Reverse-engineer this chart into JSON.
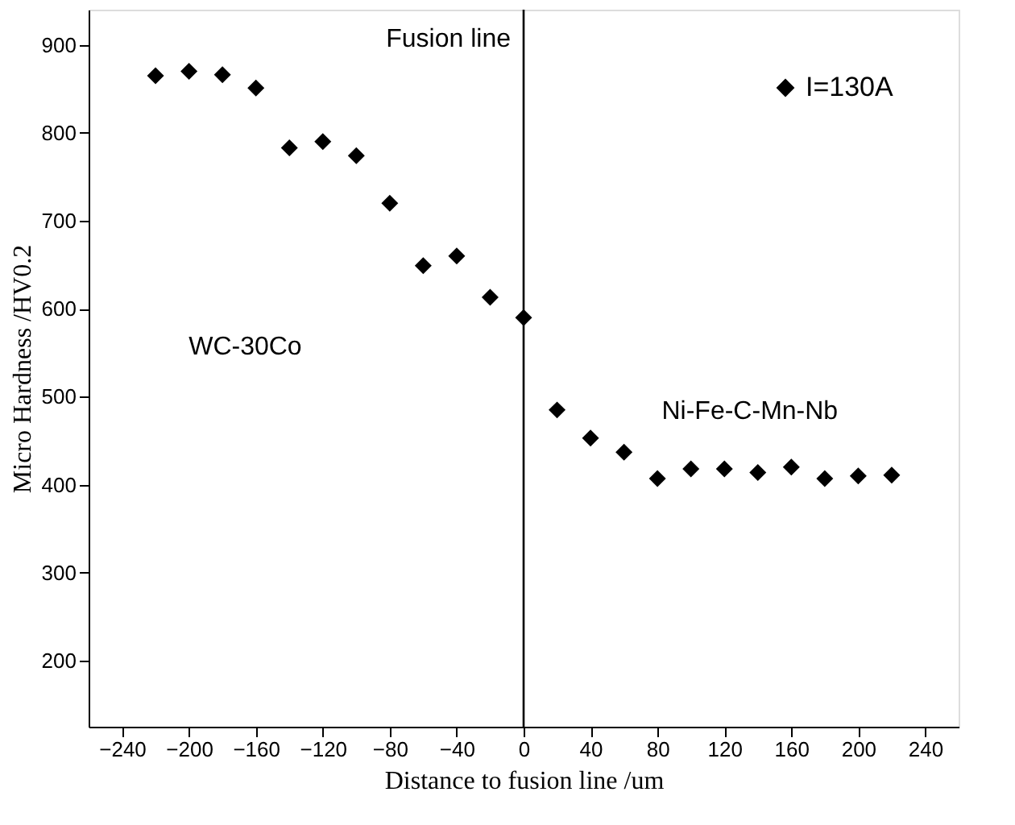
{
  "chart_data": {
    "type": "scatter",
    "xlabel": "Distance to fusion line /um",
    "ylabel": "Micro Hardness /HV0.2",
    "x": [
      -220,
      -200,
      -180,
      -160,
      -140,
      -120,
      -100,
      -80,
      -60,
      -40,
      -20,
      0,
      20,
      40,
      60,
      80,
      100,
      120,
      140,
      160,
      180,
      200,
      220
    ],
    "series": [
      {
        "name": "I=130A",
        "color": "#000000",
        "values": [
          865,
          870,
          866,
          851,
          783,
          790,
          774,
          720,
          649,
          660,
          613,
          590,
          485,
          453,
          437,
          407,
          418,
          418,
          414,
          420,
          407,
          410,
          411
        ]
      }
    ],
    "xlim": [
      -260,
      260
    ],
    "xticks": [
      -240,
      -200,
      -160,
      -120,
      -80,
      -40,
      0,
      40,
      80,
      120,
      160,
      200,
      240
    ],
    "ylim": [
      125,
      940
    ],
    "yticks": [
      200,
      300,
      400,
      500,
      600,
      700,
      800,
      900
    ],
    "marker": "diamond",
    "legend": "top right",
    "grid": false,
    "ref_lines": [
      {
        "axis": "x",
        "value": 0,
        "label": "Fusion line",
        "color": "#000000"
      }
    ],
    "annotations": [
      "WC-30Co",
      "Ni-Fe-C-Mn-Nb"
    ]
  }
}
